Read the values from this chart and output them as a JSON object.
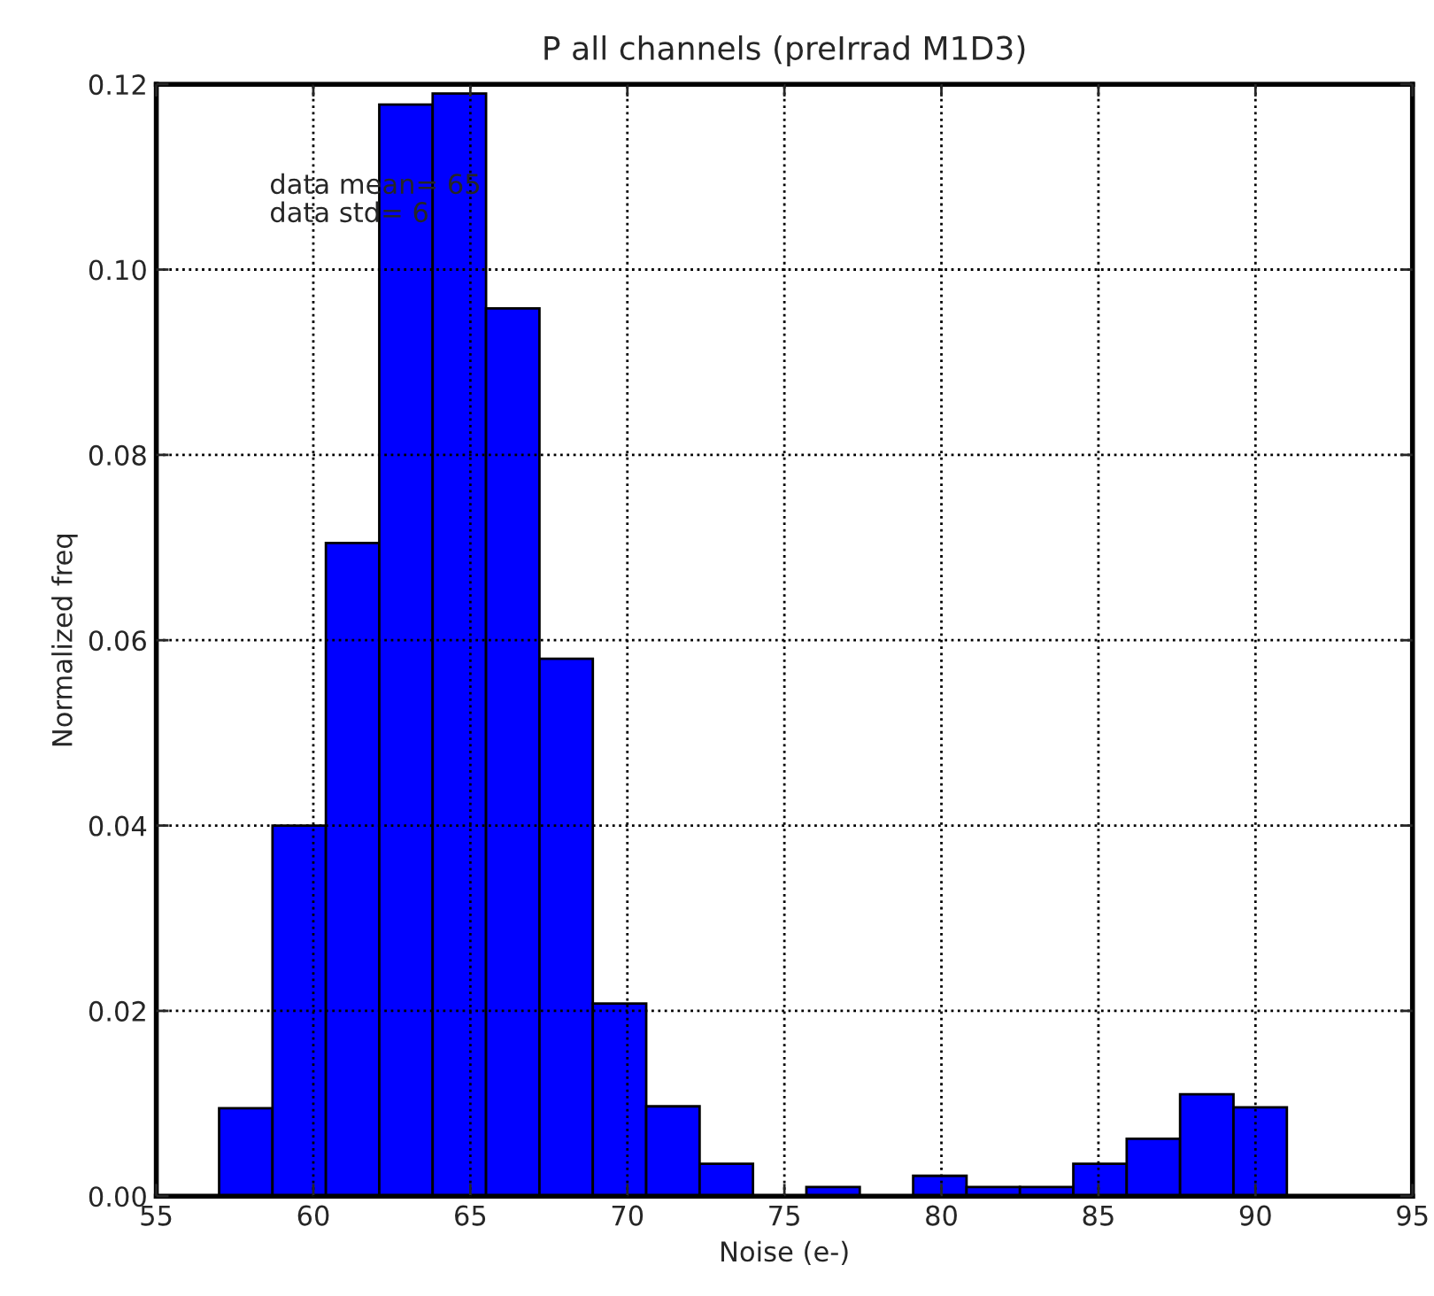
{
  "chart_data": {
    "type": "histogram",
    "title": "P all channels (preIrrad M1D3)",
    "xlabel": "Noise (e-)",
    "ylabel": "Normalized freq",
    "bins": [
      57.0,
      58.7,
      60.4,
      62.1,
      63.8,
      65.5,
      67.2,
      68.9,
      70.6,
      72.3,
      74.0,
      75.7,
      77.4,
      79.1,
      80.8,
      82.5,
      84.2,
      85.9,
      87.6,
      89.3,
      91.0
    ],
    "values": [
      0.0095,
      0.04,
      0.0705,
      0.1178,
      0.119,
      0.0958,
      0.058,
      0.0208,
      0.0097,
      0.0035,
      0,
      0.001,
      0,
      0.0022,
      0.001,
      0.001,
      0.0035,
      0.0062,
      0.011,
      0.0096
    ],
    "color": "#0000ff",
    "xlim": [
      55,
      95
    ],
    "xticks": [
      55,
      60,
      65,
      70,
      75,
      80,
      85,
      90,
      95
    ],
    "ylim": [
      0,
      0.12
    ],
    "yticks": [
      {
        "value": 0,
        "label": "0.00"
      },
      {
        "value": 0.02,
        "label": "0.02"
      },
      {
        "value": 0.04,
        "label": "0.04"
      },
      {
        "value": 0.06,
        "label": "0.06"
      },
      {
        "value": 0.08,
        "label": "0.08"
      },
      {
        "value": 0.1,
        "label": "0.10"
      },
      {
        "value": 0.12,
        "label": "0.12"
      }
    ],
    "grid": true,
    "annotations": [
      "data mean= 65\ndata std= 6"
    ]
  }
}
